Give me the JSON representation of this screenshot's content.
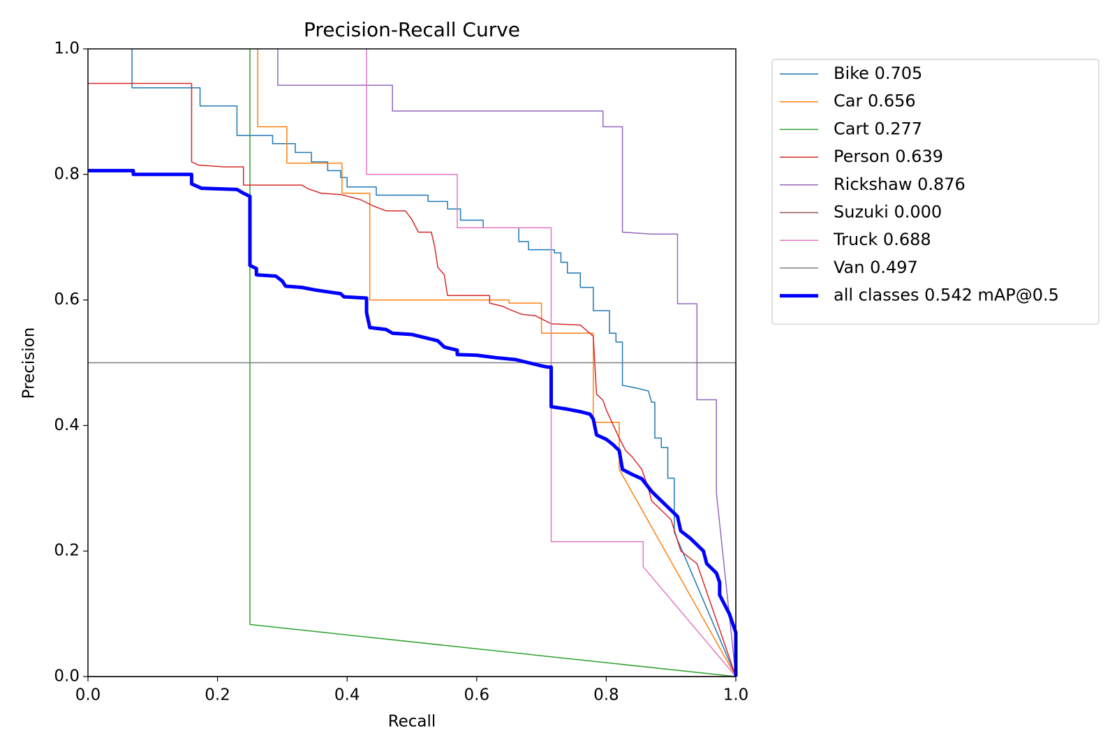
{
  "chart_data": {
    "type": "line",
    "title": "Precision-Recall Curve",
    "x_label": "Recall",
    "y_label": "Precision",
    "xlim": [
      0,
      1
    ],
    "ylim": [
      0,
      1
    ],
    "xticks": [
      {
        "value": 0,
        "label": "0.0"
      },
      0.2,
      0.4,
      0.6,
      0.8,
      {
        "value": 1,
        "label": "1.0"
      }
    ],
    "yticks": [
      {
        "value": 0,
        "label": "0.0"
      },
      0.2,
      0.4,
      0.6,
      0.8,
      {
        "value": 1,
        "label": "1.0"
      }
    ],
    "grid": false,
    "legend": "outside-upper-right",
    "series": [
      {
        "name": "Bike 0.705",
        "color": "#1f77b4",
        "linewidth": 1.5,
        "x": [
          0.068,
          0.068,
          0.173,
          0.173,
          0.23,
          0.23,
          0.285,
          0.285,
          0.32,
          0.32,
          0.345,
          0.345,
          0.37,
          0.37,
          0.39,
          0.39,
          0.4,
          0.4,
          0.445,
          0.445,
          0.525,
          0.525,
          0.555,
          0.555,
          0.575,
          0.575,
          0.61,
          0.61,
          0.665,
          0.665,
          0.68,
          0.68,
          0.72,
          0.72,
          0.73,
          0.73,
          0.74,
          0.74,
          0.76,
          0.76,
          0.78,
          0.78,
          0.805,
          0.805,
          0.815,
          0.815,
          0.825,
          0.825,
          0.845,
          0.865,
          0.87,
          0.875,
          0.875,
          0.885,
          0.885,
          0.895,
          0.895,
          0.905,
          0.905,
          1.0
        ],
        "values": [
          1.0,
          0.938,
          0.938,
          0.909,
          0.909,
          0.862,
          0.862,
          0.849,
          0.849,
          0.835,
          0.835,
          0.82,
          0.82,
          0.806,
          0.806,
          0.795,
          0.795,
          0.78,
          0.78,
          0.767,
          0.767,
          0.757,
          0.757,
          0.745,
          0.745,
          0.727,
          0.727,
          0.715,
          0.715,
          0.693,
          0.693,
          0.68,
          0.68,
          0.675,
          0.675,
          0.66,
          0.66,
          0.643,
          0.643,
          0.62,
          0.62,
          0.583,
          0.583,
          0.547,
          0.547,
          0.533,
          0.533,
          0.464,
          0.46,
          0.455,
          0.437,
          0.437,
          0.38,
          0.38,
          0.365,
          0.365,
          0.316,
          0.316,
          0.23,
          0.0
        ]
      },
      {
        "name": "Car 0.656",
        "color": "#ff7f0e",
        "linewidth": 1.5,
        "x": [
          0.262,
          0.262,
          0.307,
          0.307,
          0.392,
          0.392,
          0.435,
          0.435,
          0.65,
          0.65,
          0.7,
          0.7,
          0.78,
          0.78,
          0.82,
          0.82,
          1.0
        ],
        "values": [
          1.0,
          0.876,
          0.876,
          0.818,
          0.818,
          0.77,
          0.77,
          0.6,
          0.6,
          0.595,
          0.595,
          0.547,
          0.547,
          0.405,
          0.405,
          0.33,
          0.0
        ]
      },
      {
        "name": "Cart 0.277",
        "color": "#2ca02c",
        "linewidth": 1.5,
        "x": [
          0.25,
          0.25,
          1.0
        ],
        "values": [
          1.0,
          0.083,
          0.0
        ]
      },
      {
        "name": "Person 0.639",
        "color": "#d62728",
        "linewidth": 1.5,
        "x": [
          0,
          0.16,
          0.16,
          0.17,
          0.21,
          0.24,
          0.24,
          0.33,
          0.34,
          0.36,
          0.39,
          0.42,
          0.44,
          0.46,
          0.49,
          0.5,
          0.51,
          0.53,
          0.535,
          0.54,
          0.55,
          0.555,
          0.62,
          0.62,
          0.64,
          0.65,
          0.67,
          0.69,
          0.7,
          0.715,
          0.76,
          0.78,
          0.785,
          0.795,
          0.8,
          0.82,
          0.83,
          0.84,
          0.855,
          0.865,
          0.87,
          0.89,
          0.9,
          0.915,
          0.94,
          1.0
        ],
        "values": [
          0.945,
          0.945,
          0.82,
          0.815,
          0.812,
          0.812,
          0.783,
          0.783,
          0.777,
          0.77,
          0.768,
          0.76,
          0.75,
          0.742,
          0.742,
          0.728,
          0.708,
          0.708,
          0.686,
          0.652,
          0.64,
          0.607,
          0.607,
          0.595,
          0.59,
          0.585,
          0.577,
          0.575,
          0.57,
          0.562,
          0.56,
          0.542,
          0.45,
          0.44,
          0.425,
          0.38,
          0.36,
          0.35,
          0.33,
          0.3,
          0.28,
          0.26,
          0.25,
          0.2,
          0.18,
          0.0
        ]
      },
      {
        "name": "Rickshaw 0.876",
        "color": "#9467bd",
        "linewidth": 1.5,
        "x": [
          0.293,
          0.293,
          0.47,
          0.47,
          0.795,
          0.795,
          0.825,
          0.825,
          0.87,
          0.91,
          0.91,
          0.94,
          0.94,
          0.97,
          0.97,
          1.0
        ],
        "values": [
          1.0,
          0.942,
          0.942,
          0.901,
          0.901,
          0.876,
          0.876,
          0.708,
          0.705,
          0.705,
          0.594,
          0.594,
          0.441,
          0.441,
          0.293,
          0.0
        ]
      },
      {
        "name": "Suzuki 0.000",
        "color": "#8c564b",
        "linewidth": 1.5,
        "x": [
          0,
          1
        ],
        "values": [
          0,
          0
        ]
      },
      {
        "name": "Truck 0.688",
        "color": "#e377c2",
        "linewidth": 1.5,
        "x": [
          0.43,
          0.43,
          0.57,
          0.57,
          0.715,
          0.715,
          0.857,
          0.857,
          1.0
        ],
        "values": [
          1.0,
          0.8,
          0.8,
          0.715,
          0.715,
          0.215,
          0.215,
          0.175,
          0.0
        ]
      },
      {
        "name": "Van 0.497",
        "color": "#7f7f7f",
        "linewidth": 1.5,
        "x": [
          0,
          1,
          1
        ],
        "values": [
          0.5,
          0.5,
          0.0
        ]
      },
      {
        "name": "all classes 0.542 mAP@0.5",
        "color": "#0000ff",
        "linewidth": 5,
        "x": [
          0,
          0.07,
          0.07,
          0.16,
          0.16,
          0.175,
          0.23,
          0.24,
          0.25,
          0.25,
          0.26,
          0.26,
          0.29,
          0.3,
          0.305,
          0.33,
          0.35,
          0.37,
          0.39,
          0.395,
          0.43,
          0.43,
          0.435,
          0.46,
          0.47,
          0.5,
          0.52,
          0.54,
          0.55,
          0.57,
          0.57,
          0.6,
          0.63,
          0.66,
          0.68,
          0.7,
          0.71,
          0.715,
          0.715,
          0.74,
          0.76,
          0.775,
          0.78,
          0.785,
          0.8,
          0.81,
          0.82,
          0.825,
          0.84,
          0.855,
          0.87,
          0.885,
          0.9,
          0.91,
          0.915,
          0.93,
          0.95,
          0.955,
          0.97,
          0.975,
          0.975,
          0.99,
          1.0,
          1.0
        ],
        "values": [
          0.806,
          0.806,
          0.8,
          0.8,
          0.785,
          0.778,
          0.776,
          0.77,
          0.765,
          0.655,
          0.65,
          0.64,
          0.638,
          0.63,
          0.622,
          0.62,
          0.616,
          0.613,
          0.61,
          0.605,
          0.603,
          0.58,
          0.556,
          0.553,
          0.547,
          0.545,
          0.54,
          0.535,
          0.525,
          0.52,
          0.513,
          0.512,
          0.508,
          0.505,
          0.5,
          0.495,
          0.493,
          0.493,
          0.43,
          0.426,
          0.422,
          0.418,
          0.41,
          0.385,
          0.378,
          0.37,
          0.36,
          0.33,
          0.322,
          0.315,
          0.295,
          0.28,
          0.265,
          0.255,
          0.232,
          0.22,
          0.2,
          0.18,
          0.165,
          0.15,
          0.13,
          0.1,
          0.07,
          0.0
        ]
      }
    ]
  }
}
